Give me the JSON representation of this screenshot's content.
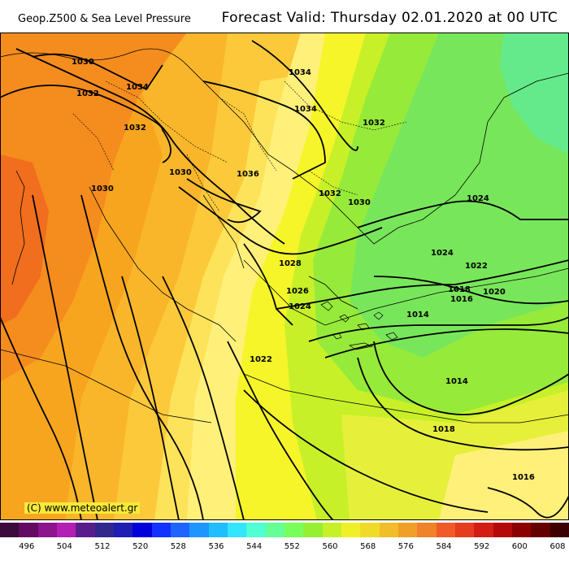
{
  "header": {
    "product": "Geop.Z500 & Sea Level Pressure",
    "forecast": "Forecast Valid:  Thursday 02.01.2020 at 00 UTC"
  },
  "credit": "(C) www.meteoalert.gr",
  "colorbar": {
    "colors": [
      "#3c0a3c",
      "#640a64",
      "#8c148c",
      "#b41eb4",
      "#5a1e8c",
      "#32288c",
      "#1e1eb4",
      "#0000dc",
      "#1432ff",
      "#1e64ff",
      "#1e96ff",
      "#1ebeff",
      "#32e6ff",
      "#50ffd2",
      "#64ff96",
      "#78ff5a",
      "#96f032",
      "#c8f028",
      "#f0f028",
      "#f0dc28",
      "#f0be28",
      "#f0a028",
      "#f08228",
      "#f05a28",
      "#e63c1e",
      "#d21e14",
      "#b40a0a",
      "#8c0000",
      "#640000",
      "#3c0000"
    ],
    "tick_labels": [
      "496",
      "504",
      "512",
      "520",
      "528",
      "536",
      "544",
      "552",
      "560",
      "568",
      "576",
      "584",
      "592",
      "600",
      "608"
    ]
  },
  "isobar_labels": [
    "1030",
    "1032",
    "1034",
    "1032",
    "1030",
    "1030",
    "1034",
    "1034",
    "1032",
    "1036",
    "1032",
    "1030",
    "1024",
    "1024",
    "1028",
    "1022",
    "1026",
    "1024",
    "1018",
    "1016",
    "1020",
    "1014",
    "1022",
    "1014",
    "1018",
    "1016"
  ]
}
